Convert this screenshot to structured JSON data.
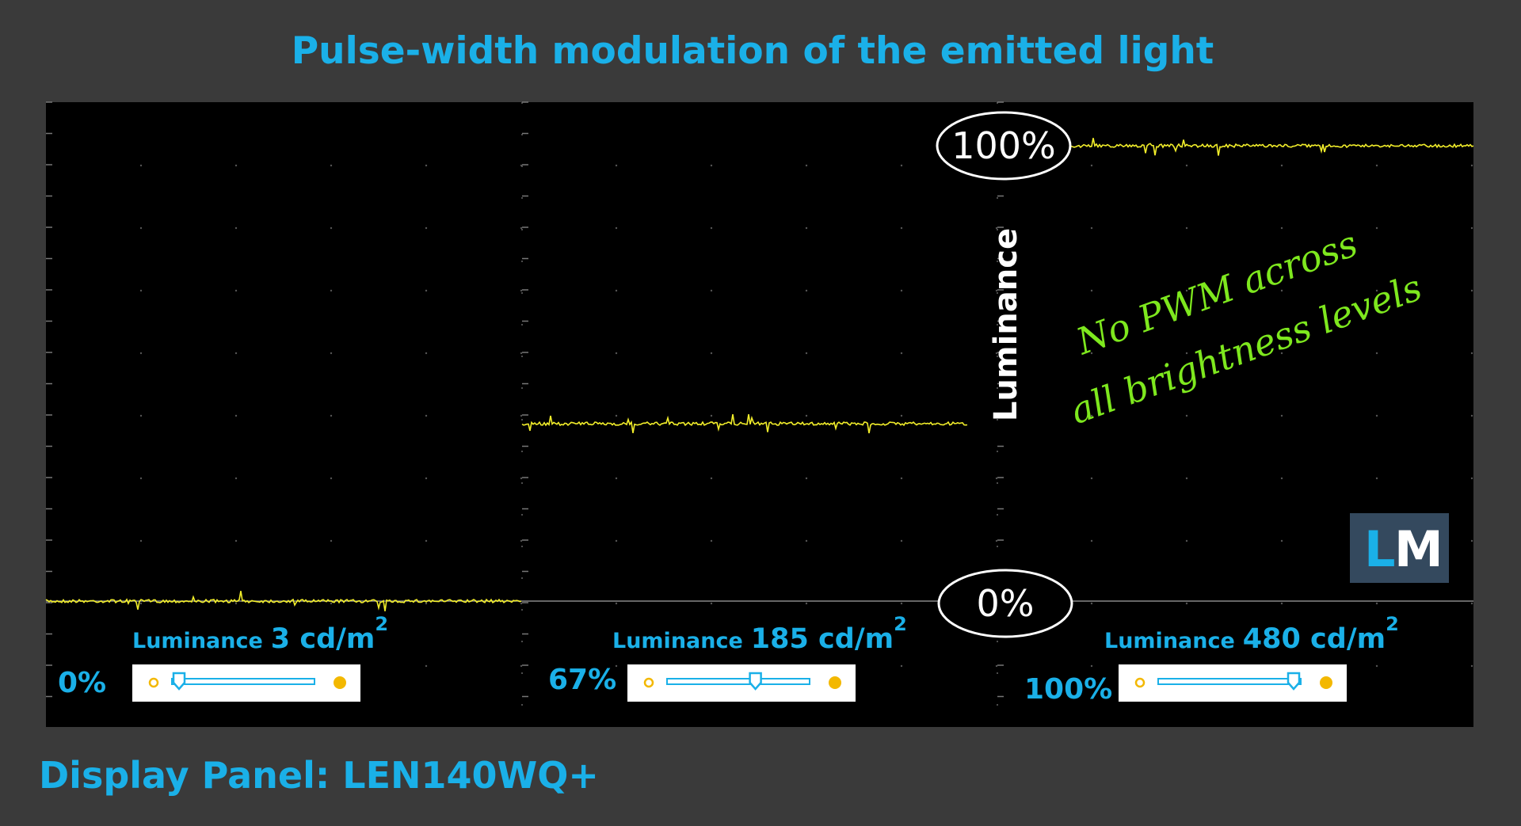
{
  "title": "Pulse-width modulation of the emitted light",
  "levels": {
    "max": "100%",
    "min": "0%"
  },
  "axis_label": "Luminance",
  "annotation": [
    "No PWM across",
    "all brightness levels"
  ],
  "logo": {
    "l": "L",
    "m": "M"
  },
  "panels": [
    {
      "luminance_label": "Luminance",
      "luminance_value": "3 cd/m",
      "superscript": "2",
      "brightness": "0%"
    },
    {
      "luminance_label": "Luminance",
      "luminance_value": "185 cd/m",
      "superscript": "2",
      "brightness": "67%"
    },
    {
      "luminance_label": "Luminance",
      "luminance_value": "480 cd/m",
      "superscript": "2",
      "brightness": "100%"
    }
  ],
  "footer": "Display Panel: LEN140WQ+"
}
